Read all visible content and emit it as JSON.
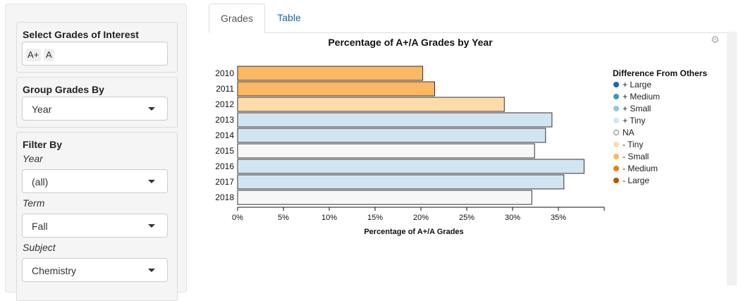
{
  "sidebar": {
    "select_grades": {
      "title": "Select Grades of Interest",
      "tokens": [
        "A+",
        "A"
      ]
    },
    "group_by": {
      "title": "Group Grades By",
      "value": "Year"
    },
    "filter": {
      "title": "Filter By",
      "year_label": "Year",
      "year_value": "(all)",
      "term_label": "Term",
      "term_value": "Fall",
      "subject_label": "Subject",
      "subject_value": "Chemistry"
    }
  },
  "tabs": [
    {
      "label": "Grades",
      "active": true
    },
    {
      "label": "Table",
      "active": false
    }
  ],
  "legend": {
    "title": "Difference From Others",
    "items": [
      {
        "label": "+ Large",
        "color": "#2166ac"
      },
      {
        "label": "+ Medium",
        "color": "#4393c3"
      },
      {
        "label": "+ Small",
        "color": "#92c5de"
      },
      {
        "label": "+ Tiny",
        "color": "#d1e5f0"
      },
      {
        "label": "NA",
        "color": "#f7f7f7"
      },
      {
        "label": "- Tiny",
        "color": "#fddbab"
      },
      {
        "label": "- Small",
        "color": "#fdb863"
      },
      {
        "label": "- Medium",
        "color": "#e08214"
      },
      {
        "label": "- Large",
        "color": "#b35806"
      }
    ]
  },
  "chart_data": {
    "type": "bar",
    "orientation": "horizontal",
    "title": "Percentage of A+/A Grades by Year",
    "xlabel": "Percentage of A+/A Grades",
    "ylabel": "",
    "xlim": [
      0,
      40
    ],
    "xticks": [
      0,
      5,
      10,
      15,
      20,
      25,
      30,
      35
    ],
    "xtick_labels": [
      "0%",
      "5%",
      "10%",
      "15%",
      "20%",
      "25%",
      "30%",
      "35%"
    ],
    "categories": [
      "2010",
      "2011",
      "2012",
      "2013",
      "2014",
      "2015",
      "2016",
      "2017",
      "2018"
    ],
    "values": [
      20.2,
      21.5,
      29.1,
      34.3,
      33.6,
      32.4,
      37.8,
      35.6,
      32.1
    ],
    "groups": [
      "- Small",
      "- Small",
      "- Tiny",
      "+ Tiny",
      "+ Tiny",
      "NA",
      "+ Tiny",
      "+ Tiny",
      "NA"
    ]
  }
}
